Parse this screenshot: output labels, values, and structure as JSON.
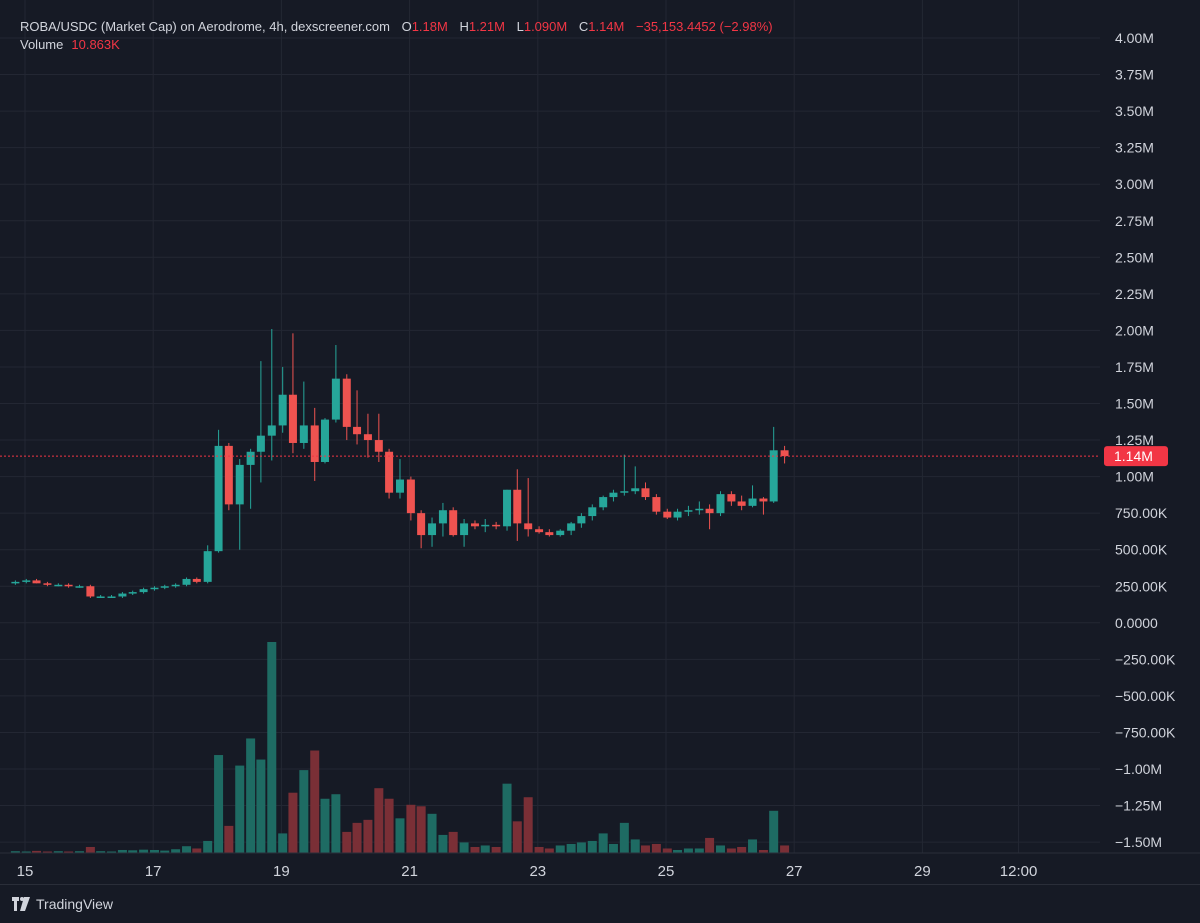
{
  "legend": {
    "pair": "ROBA/USDC (Market Cap) on Aerodrome, 4h, dexscreener.com",
    "o_label": "O",
    "o_value": "1.18M",
    "h_label": "H",
    "h_value": "1.21M",
    "l_label": "L",
    "l_value": "1.090M",
    "c_label": "C",
    "c_value": "1.14M",
    "change": "−35,153.4452 (−2.98%)",
    "volume_label": "Volume",
    "volume_value": "10.863K"
  },
  "price_tag": "1.14M",
  "brand": "TradingView",
  "colors": {
    "up": "#26a69a",
    "down": "#ef5350",
    "up_vol": "#1e6b63",
    "down_vol": "#7a2f36",
    "grid": "#232733",
    "text": "#d1d4dc",
    "tag": "#f23645"
  },
  "chart_data": {
    "type": "candlestick",
    "x_tick_labels": [
      "15",
      "17",
      "19",
      "21",
      "23",
      "25",
      "27",
      "29",
      "12:00"
    ],
    "y_tick_labels": [
      "4.00M",
      "3.75M",
      "3.50M",
      "3.25M",
      "3.00M",
      "2.75M",
      "2.50M",
      "2.25M",
      "2.00M",
      "1.75M",
      "1.50M",
      "1.25M",
      "1.00M",
      "750.00K",
      "500.00K",
      "250.00K",
      "0.0000",
      "−250.00K",
      "−500.00K",
      "−750.00K",
      "−1.00M",
      "−1.25M",
      "−1.50M"
    ],
    "y_range": [
      -1.6,
      4.0
    ],
    "y_unit": "M",
    "x_range_days": [
      15,
      31.6
    ],
    "last_price": 1.14,
    "interval": "4h",
    "candles": [
      {
        "t": 14.85,
        "o": 0.27,
        "h": 0.29,
        "l": 0.26,
        "c": 0.28,
        "v": 0.012
      },
      {
        "t": 15.02,
        "o": 0.28,
        "h": 0.3,
        "l": 0.27,
        "c": 0.29,
        "v": 0.01
      },
      {
        "t": 15.18,
        "o": 0.29,
        "h": 0.3,
        "l": 0.27,
        "c": 0.27,
        "v": 0.014
      },
      {
        "t": 15.35,
        "o": 0.27,
        "h": 0.28,
        "l": 0.25,
        "c": 0.26,
        "v": 0.01
      },
      {
        "t": 15.52,
        "o": 0.26,
        "h": 0.27,
        "l": 0.25,
        "c": 0.26,
        "v": 0.012
      },
      {
        "t": 15.68,
        "o": 0.26,
        "h": 0.27,
        "l": 0.24,
        "c": 0.25,
        "v": 0.01
      },
      {
        "t": 15.85,
        "o": 0.25,
        "h": 0.26,
        "l": 0.24,
        "c": 0.25,
        "v": 0.012
      },
      {
        "t": 16.02,
        "o": 0.25,
        "h": 0.26,
        "l": 0.17,
        "c": 0.18,
        "v": 0.04
      },
      {
        "t": 16.18,
        "o": 0.18,
        "h": 0.19,
        "l": 0.17,
        "c": 0.18,
        "v": 0.012
      },
      {
        "t": 16.35,
        "o": 0.18,
        "h": 0.19,
        "l": 0.17,
        "c": 0.18,
        "v": 0.01
      },
      {
        "t": 16.52,
        "o": 0.18,
        "h": 0.21,
        "l": 0.17,
        "c": 0.2,
        "v": 0.02
      },
      {
        "t": 16.68,
        "o": 0.2,
        "h": 0.22,
        "l": 0.19,
        "c": 0.21,
        "v": 0.018
      },
      {
        "t": 16.85,
        "o": 0.21,
        "h": 0.24,
        "l": 0.2,
        "c": 0.23,
        "v": 0.022
      },
      {
        "t": 17.02,
        "o": 0.23,
        "h": 0.25,
        "l": 0.22,
        "c": 0.24,
        "v": 0.02
      },
      {
        "t": 17.18,
        "o": 0.24,
        "h": 0.26,
        "l": 0.23,
        "c": 0.25,
        "v": 0.016
      },
      {
        "t": 17.35,
        "o": 0.25,
        "h": 0.27,
        "l": 0.24,
        "c": 0.26,
        "v": 0.025
      },
      {
        "t": 17.52,
        "o": 0.26,
        "h": 0.31,
        "l": 0.25,
        "c": 0.3,
        "v": 0.045
      },
      {
        "t": 17.68,
        "o": 0.3,
        "h": 0.31,
        "l": 0.27,
        "c": 0.28,
        "v": 0.03
      },
      {
        "t": 17.85,
        "o": 0.28,
        "h": 0.53,
        "l": 0.27,
        "c": 0.49,
        "v": 0.08
      },
      {
        "t": 18.02,
        "o": 0.49,
        "h": 1.32,
        "l": 0.48,
        "c": 1.21,
        "v": 0.65
      },
      {
        "t": 18.18,
        "o": 1.21,
        "h": 1.23,
        "l": 0.77,
        "c": 0.81,
        "v": 0.18
      },
      {
        "t": 18.35,
        "o": 0.81,
        "h": 1.12,
        "l": 0.5,
        "c": 1.08,
        "v": 0.58
      },
      {
        "t": 18.52,
        "o": 1.08,
        "h": 1.19,
        "l": 0.78,
        "c": 1.17,
        "v": 0.76
      },
      {
        "t": 18.68,
        "o": 1.17,
        "h": 1.79,
        "l": 0.96,
        "c": 1.28,
        "v": 0.62
      },
      {
        "t": 18.85,
        "o": 1.28,
        "h": 2.01,
        "l": 1.11,
        "c": 1.35,
        "v": 1.4
      },
      {
        "t": 19.02,
        "o": 1.35,
        "h": 1.75,
        "l": 1.3,
        "c": 1.56,
        "v": 0.13
      },
      {
        "t": 19.18,
        "o": 1.56,
        "h": 1.98,
        "l": 1.16,
        "c": 1.23,
        "v": 0.4
      },
      {
        "t": 19.35,
        "o": 1.23,
        "h": 1.65,
        "l": 1.19,
        "c": 1.35,
        "v": 0.55
      },
      {
        "t": 19.52,
        "o": 1.35,
        "h": 1.47,
        "l": 0.97,
        "c": 1.1,
        "v": 0.68
      },
      {
        "t": 19.68,
        "o": 1.1,
        "h": 1.4,
        "l": 1.09,
        "c": 1.39,
        "v": 0.36
      },
      {
        "t": 19.85,
        "o": 1.39,
        "h": 1.9,
        "l": 1.37,
        "c": 1.67,
        "v": 0.39
      },
      {
        "t": 20.02,
        "o": 1.67,
        "h": 1.7,
        "l": 1.25,
        "c": 1.34,
        "v": 0.14
      },
      {
        "t": 20.18,
        "o": 1.34,
        "h": 1.59,
        "l": 1.22,
        "c": 1.29,
        "v": 0.2
      },
      {
        "t": 20.35,
        "o": 1.29,
        "h": 1.43,
        "l": 1.13,
        "c": 1.25,
        "v": 0.22
      },
      {
        "t": 20.52,
        "o": 1.25,
        "h": 1.43,
        "l": 1.1,
        "c": 1.17,
        "v": 0.43
      },
      {
        "t": 20.68,
        "o": 1.17,
        "h": 1.19,
        "l": 0.85,
        "c": 0.89,
        "v": 0.36
      },
      {
        "t": 20.85,
        "o": 0.89,
        "h": 1.12,
        "l": 0.85,
        "c": 0.98,
        "v": 0.23
      },
      {
        "t": 21.02,
        "o": 0.98,
        "h": 1.0,
        "l": 0.7,
        "c": 0.75,
        "v": 0.32
      },
      {
        "t": 21.18,
        "o": 0.75,
        "h": 0.77,
        "l": 0.51,
        "c": 0.6,
        "v": 0.31
      },
      {
        "t": 21.35,
        "o": 0.6,
        "h": 0.72,
        "l": 0.52,
        "c": 0.68,
        "v": 0.26
      },
      {
        "t": 21.52,
        "o": 0.68,
        "h": 0.82,
        "l": 0.59,
        "c": 0.77,
        "v": 0.12
      },
      {
        "t": 21.68,
        "o": 0.77,
        "h": 0.79,
        "l": 0.59,
        "c": 0.6,
        "v": 0.14
      },
      {
        "t": 21.85,
        "o": 0.6,
        "h": 0.71,
        "l": 0.52,
        "c": 0.68,
        "v": 0.07
      },
      {
        "t": 22.02,
        "o": 0.68,
        "h": 0.7,
        "l": 0.64,
        "c": 0.66,
        "v": 0.04
      },
      {
        "t": 22.18,
        "o": 0.66,
        "h": 0.71,
        "l": 0.62,
        "c": 0.67,
        "v": 0.05
      },
      {
        "t": 22.35,
        "o": 0.67,
        "h": 0.69,
        "l": 0.64,
        "c": 0.66,
        "v": 0.04
      },
      {
        "t": 22.52,
        "o": 0.66,
        "h": 0.91,
        "l": 0.63,
        "c": 0.91,
        "v": 0.46
      },
      {
        "t": 22.68,
        "o": 0.91,
        "h": 1.05,
        "l": 0.56,
        "c": 0.68,
        "v": 0.21
      },
      {
        "t": 22.85,
        "o": 0.68,
        "h": 0.99,
        "l": 0.59,
        "c": 0.64,
        "v": 0.37
      },
      {
        "t": 23.02,
        "o": 0.64,
        "h": 0.66,
        "l": 0.61,
        "c": 0.62,
        "v": 0.04
      },
      {
        "t": 23.18,
        "o": 0.62,
        "h": 0.64,
        "l": 0.59,
        "c": 0.6,
        "v": 0.03
      },
      {
        "t": 23.35,
        "o": 0.6,
        "h": 0.64,
        "l": 0.59,
        "c": 0.63,
        "v": 0.05
      },
      {
        "t": 23.52,
        "o": 0.63,
        "h": 0.69,
        "l": 0.6,
        "c": 0.68,
        "v": 0.06
      },
      {
        "t": 23.68,
        "o": 0.68,
        "h": 0.75,
        "l": 0.65,
        "c": 0.73,
        "v": 0.07
      },
      {
        "t": 23.85,
        "o": 0.73,
        "h": 0.81,
        "l": 0.7,
        "c": 0.79,
        "v": 0.08
      },
      {
        "t": 24.02,
        "o": 0.79,
        "h": 0.87,
        "l": 0.77,
        "c": 0.86,
        "v": 0.13
      },
      {
        "t": 24.18,
        "o": 0.86,
        "h": 0.91,
        "l": 0.83,
        "c": 0.89,
        "v": 0.06
      },
      {
        "t": 24.35,
        "o": 0.89,
        "h": 1.15,
        "l": 0.87,
        "c": 0.9,
        "v": 0.2
      },
      {
        "t": 24.52,
        "o": 0.9,
        "h": 1.07,
        "l": 0.88,
        "c": 0.92,
        "v": 0.09
      },
      {
        "t": 24.68,
        "o": 0.92,
        "h": 0.96,
        "l": 0.84,
        "c": 0.86,
        "v": 0.05
      },
      {
        "t": 24.85,
        "o": 0.86,
        "h": 0.88,
        "l": 0.74,
        "c": 0.76,
        "v": 0.06
      },
      {
        "t": 25.02,
        "o": 0.76,
        "h": 0.78,
        "l": 0.71,
        "c": 0.72,
        "v": 0.03
      },
      {
        "t": 25.18,
        "o": 0.72,
        "h": 0.78,
        "l": 0.7,
        "c": 0.76,
        "v": 0.02
      },
      {
        "t": 25.35,
        "o": 0.76,
        "h": 0.8,
        "l": 0.73,
        "c": 0.77,
        "v": 0.03
      },
      {
        "t": 25.52,
        "o": 0.77,
        "h": 0.83,
        "l": 0.74,
        "c": 0.78,
        "v": 0.03
      },
      {
        "t": 25.68,
        "o": 0.78,
        "h": 0.81,
        "l": 0.64,
        "c": 0.75,
        "v": 0.1
      },
      {
        "t": 25.85,
        "o": 0.75,
        "h": 0.9,
        "l": 0.73,
        "c": 0.88,
        "v": 0.05
      },
      {
        "t": 26.02,
        "o": 0.88,
        "h": 0.9,
        "l": 0.8,
        "c": 0.83,
        "v": 0.03
      },
      {
        "t": 26.18,
        "o": 0.83,
        "h": 0.87,
        "l": 0.77,
        "c": 0.8,
        "v": 0.04
      },
      {
        "t": 26.35,
        "o": 0.8,
        "h": 0.94,
        "l": 0.79,
        "c": 0.85,
        "v": 0.09
      },
      {
        "t": 26.52,
        "o": 0.85,
        "h": 0.86,
        "l": 0.74,
        "c": 0.83,
        "v": 0.02
      },
      {
        "t": 26.68,
        "o": 0.83,
        "h": 1.34,
        "l": 0.82,
        "c": 1.18,
        "v": 0.28
      },
      {
        "t": 26.85,
        "o": 1.18,
        "h": 1.21,
        "l": 1.09,
        "c": 1.14,
        "v": 0.05
      }
    ],
    "volume_axis_max": 1.4
  }
}
